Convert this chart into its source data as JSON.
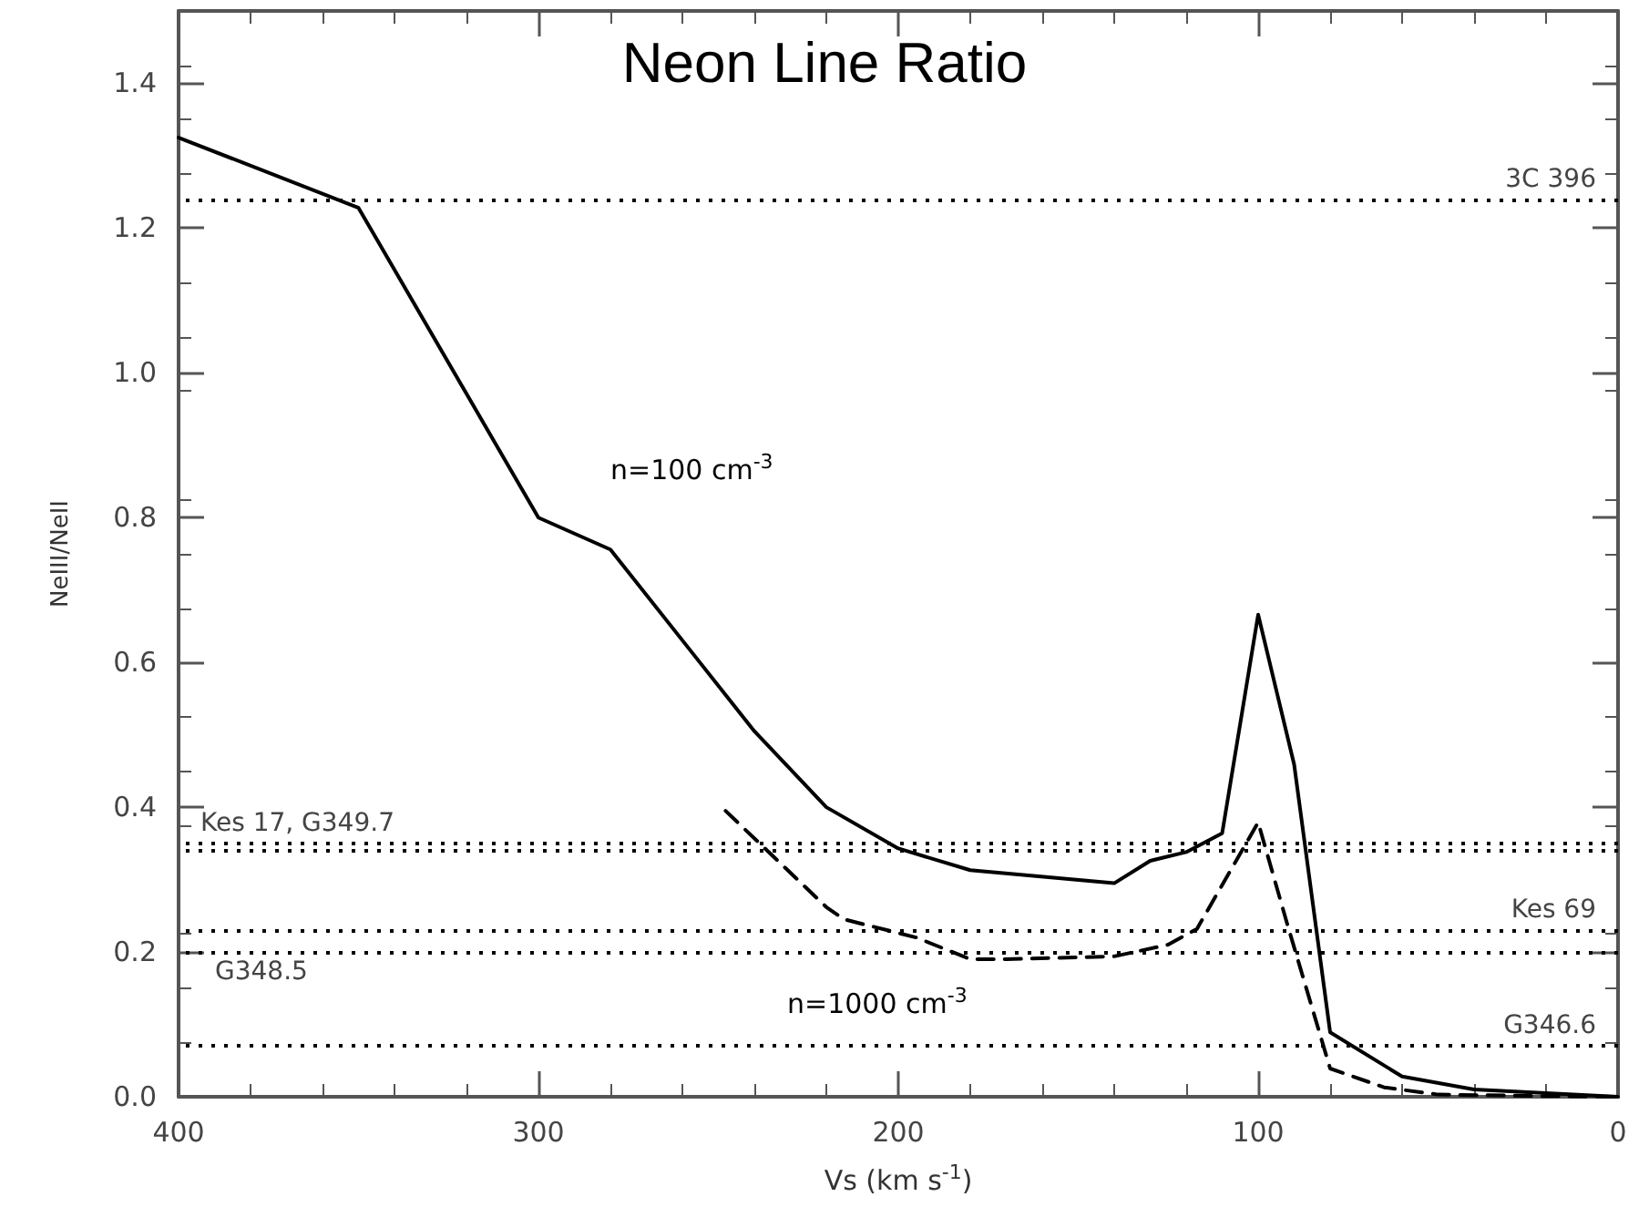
{
  "chart_data": {
    "type": "line",
    "title": "Neon Line Ratio",
    "xlabel": "Vs (km s$^{-1}$)",
    "ylabel": "NeIII/NeII",
    "xlim": [
      400,
      0
    ],
    "xticks": [
      400,
      300,
      200,
      100,
      0
    ],
    "ylim": [
      0,
      1.5
    ],
    "yticks": [
      {
        "value": 0,
        "label": "0.0"
      },
      0.2,
      0.4,
      0.6,
      0.8,
      {
        "value": 1,
        "label": "1.0"
      },
      1.2,
      1.4
    ],
    "grid": false,
    "legend": false,
    "marker": "none",
    "series": [
      {
        "color": "#000000",
        "line_style": "solid",
        "x": [
          400,
          350,
          300,
          280,
          240,
          220,
          200,
          180,
          140,
          130,
          120,
          110,
          100,
          90,
          80,
          60,
          40,
          20,
          0
        ],
        "values": [
          1.325,
          1.228,
          0.8,
          0.756,
          0.505,
          0.4,
          0.343,
          0.313,
          0.295,
          0.326,
          0.338,
          0.364,
          0.666,
          0.459,
          0.089,
          0.028,
          0.01,
          0.005,
          0
        ]
      },
      {
        "color": "#000000",
        "line_style": "dashed",
        "x": [
          248,
          220,
          215,
          195,
          180,
          170,
          140,
          125,
          117,
          100,
          92,
          80,
          65,
          50,
          20,
          0
        ],
        "values": [
          0.395,
          0.262,
          0.245,
          0.22,
          0.19,
          0.19,
          0.194,
          0.21,
          0.232,
          0.379,
          0.24,
          0.039,
          0.013,
          0.003,
          0.001,
          0
        ]
      }
    ],
    "ref_lines": [
      {
        "axis": "y",
        "value": 1.24,
        "label": "3C 396",
        "color": "#000000",
        "line_style": "dotted"
      },
      {
        "axis": "y",
        "value": 0.35,
        "label": "Kes 17, G349.7",
        "color": "#000000",
        "line_style": "dotted"
      },
      {
        "axis": "y",
        "value": 0.34,
        "label": null,
        "color": "#000000",
        "line_style": "dotted"
      },
      {
        "axis": "y",
        "value": 0.235,
        "label": "Kes 69",
        "color": "#000000",
        "line_style": "dotted"
      },
      {
        "axis": "y",
        "value": 0.2,
        "label": "G348.5",
        "color": "#000000",
        "line_style": "dotted"
      },
      {
        "axis": "y",
        "value": 0.07,
        "label": "G346.6",
        "color": "#000000",
        "line_style": "dotted"
      }
    ],
    "annotations": [
      "n=100 cm$^{-3}$",
      "n=1000 cm$^{-3}$"
    ]
  }
}
